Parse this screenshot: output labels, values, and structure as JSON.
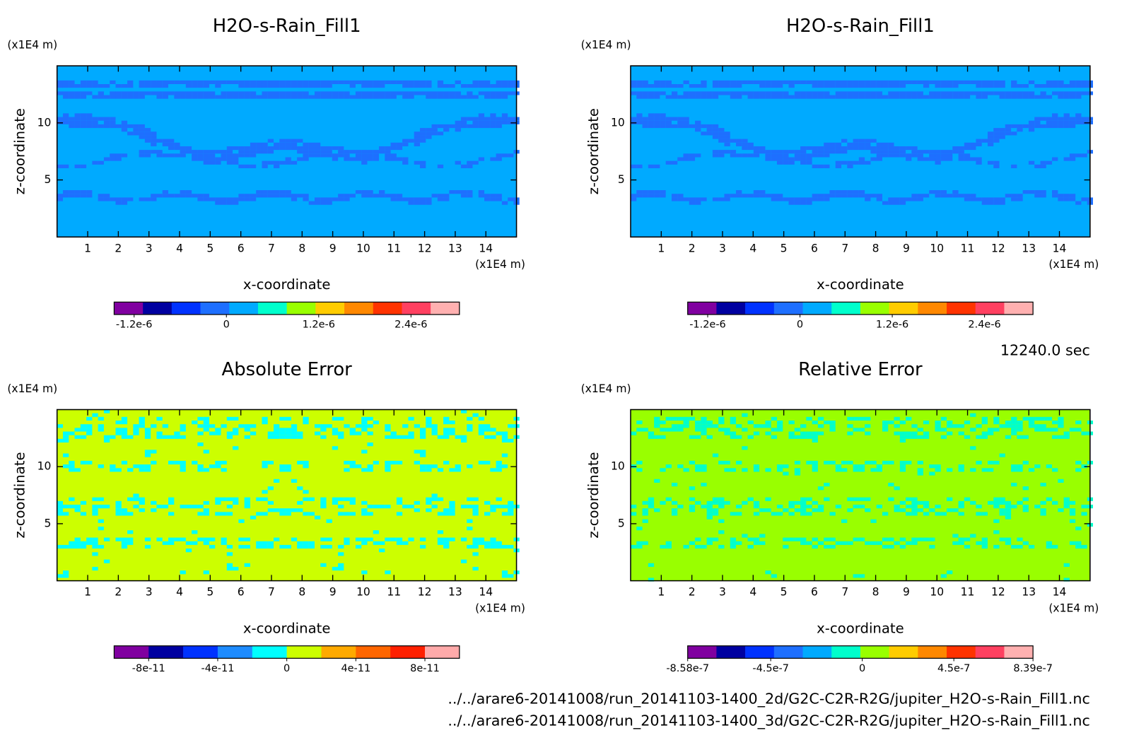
{
  "panels": [
    {
      "title": "H2O-s-Rain_Fill1",
      "y_unit": "(x1E4 m)",
      "x_unit": "(x1E4 m)",
      "xlabel": "x-coordinate",
      "ylabel": "z-coordinate",
      "xlim": [
        0,
        15
      ],
      "xticks": [
        1,
        2,
        3,
        4,
        5,
        6,
        7,
        8,
        9,
        10,
        11,
        12,
        13,
        14
      ],
      "ylim": [
        0,
        15
      ],
      "yticks": [
        5,
        10
      ],
      "colorbar": {
        "colors": [
          "#8000a0",
          "#0000a0",
          "#0032ff",
          "#1e6fff",
          "#00aaff",
          "#00ffcc",
          "#99ff00",
          "#ffcc00",
          "#ff8800",
          "#ff3300",
          "#ff4060",
          "#ffb0b0"
        ],
        "lim": [
          -1.46e-06,
          3.03e-06
        ],
        "ticks": [
          {
            "value": -1.2e-06,
            "label": "-1.2e-6"
          },
          0,
          {
            "value": 1.2e-06,
            "label": "1.2e-6"
          },
          {
            "value": 2.4e-06,
            "label": "2.4e-6"
          }
        ]
      }
    },
    {
      "title": "H2O-s-Rain_Fill1",
      "y_unit": "(x1E4 m)",
      "x_unit": "(x1E4 m)",
      "xlabel": "x-coordinate",
      "ylabel": "z-coordinate",
      "xlim": [
        0,
        15
      ],
      "xticks": [
        1,
        2,
        3,
        4,
        5,
        6,
        7,
        8,
        9,
        10,
        11,
        12,
        13,
        14
      ],
      "ylim": [
        0,
        15
      ],
      "yticks": [
        5,
        10
      ],
      "colorbar": {
        "colors": [
          "#8000a0",
          "#0000a0",
          "#0032ff",
          "#1e6fff",
          "#00aaff",
          "#00ffcc",
          "#99ff00",
          "#ffcc00",
          "#ff8800",
          "#ff3300",
          "#ff4060",
          "#ffb0b0"
        ],
        "lim": [
          -1.46e-06,
          3.03e-06
        ],
        "ticks": [
          {
            "value": -1.2e-06,
            "label": "-1.2e-6"
          },
          0,
          {
            "value": 1.2e-06,
            "label": "1.2e-6"
          },
          {
            "value": 2.4e-06,
            "label": "2.4e-6"
          }
        ]
      }
    },
    {
      "title": "Absolute Error",
      "y_unit": "(x1E4 m)",
      "x_unit": "(x1E4 m)",
      "xlabel": "x-coordinate",
      "ylabel": "z-coordinate",
      "xlim": [
        0,
        15
      ],
      "xticks": [
        1,
        2,
        3,
        4,
        5,
        6,
        7,
        8,
        9,
        10,
        11,
        12,
        13,
        14
      ],
      "ylim": [
        0,
        15
      ],
      "yticks": [
        5,
        10
      ],
      "colorbar": {
        "colors": [
          "#8000a0",
          "#0000a0",
          "#0032ff",
          "#1e8cff",
          "#00ffff",
          "#ccff00",
          "#ffaa00",
          "#ff6600",
          "#ff2000",
          "#ffaaaa"
        ],
        "lim": [
          -1e-10,
          1e-10
        ],
        "ticks": [
          -8e-11,
          -4e-11,
          0,
          4e-11,
          8e-11
        ]
      }
    },
    {
      "title": "Relative Error",
      "y_unit": "(x1E4 m)",
      "x_unit": "(x1E4 m)",
      "xlabel": "x-coordinate",
      "ylabel": "z-coordinate",
      "xlim": [
        0,
        15
      ],
      "xticks": [
        1,
        2,
        3,
        4,
        5,
        6,
        7,
        8,
        9,
        10,
        11,
        12,
        13,
        14
      ],
      "ylim": [
        0,
        15
      ],
      "yticks": [
        5,
        10
      ],
      "colorbar": {
        "colors": [
          "#8000a0",
          "#0000a0",
          "#0032ff",
          "#1e6fff",
          "#00aaff",
          "#00ffcc",
          "#99ff00",
          "#ffcc00",
          "#ff8800",
          "#ff3300",
          "#ff4060",
          "#ffb0b0"
        ],
        "lim": [
          -8.58e-07,
          8.39e-07
        ],
        "ticks": [
          -8.58e-07,
          -4.5e-07,
          0,
          4.5e-07,
          8.39e-07
        ]
      }
    }
  ],
  "time": "12240.0 sec",
  "files": [
    "../../arare6-20141008/run_20141103-1400_2d/G2C-C2R-R2G/jupiter_H2O-s-Rain_Fill1.nc",
    "../../arare6-20141008/run_20141103-1400_3d/G2C-C2R-R2G/jupiter_H2O-s-Rain_Fill1.nc"
  ]
}
